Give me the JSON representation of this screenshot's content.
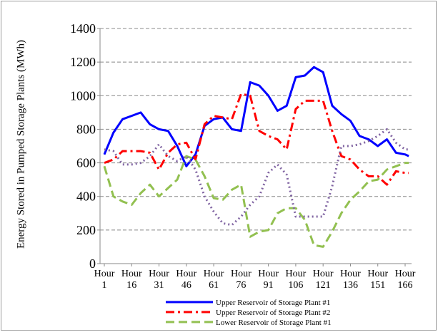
{
  "chart_data": {
    "type": "line",
    "y_label": "Energy Stored in Pumped Storage Plants (MWh)",
    "x": [
      1,
      6,
      11,
      16,
      21,
      26,
      31,
      36,
      41,
      46,
      51,
      56,
      61,
      66,
      71,
      76,
      81,
      86,
      91,
      96,
      101,
      106,
      111,
      116,
      121,
      126,
      131,
      136,
      141,
      146,
      151,
      156,
      161,
      166,
      168
    ],
    "xlim": [
      1,
      166
    ],
    "xticks": [
      {
        "value": 1,
        "label": "Hour 1"
      },
      {
        "value": 16,
        "label": "Hour 16"
      },
      {
        "value": 31,
        "label": "Hour 31"
      },
      {
        "value": 46,
        "label": "Hour 46"
      },
      {
        "value": 61,
        "label": "Hour 61"
      },
      {
        "value": 76,
        "label": "Hour 76"
      },
      {
        "value": 91,
        "label": "Hour 91"
      },
      {
        "value": 106,
        "label": "Hour 106"
      },
      {
        "value": 121,
        "label": "Hour 121"
      },
      {
        "value": 136,
        "label": "Hour 136"
      },
      {
        "value": 151,
        "label": "Hour 151"
      },
      {
        "value": 166,
        "label": "Hour 166"
      }
    ],
    "ylim": [
      0,
      1400
    ],
    "yticks": [
      0,
      200,
      400,
      600,
      800,
      1000,
      1200,
      1400
    ],
    "grid": true,
    "legend": "bottom",
    "series": [
      {
        "name": "Upper Reservoir of Storage Plant #1",
        "color": "#0000ff",
        "dash": "solid",
        "values": [
          650,
          780,
          860,
          880,
          900,
          830,
          800,
          790,
          700,
          580,
          650,
          820,
          860,
          870,
          800,
          790,
          1080,
          1060,
          1000,
          910,
          940,
          1110,
          1120,
          1170,
          1140,
          940,
          890,
          850,
          760,
          740,
          700,
          740,
          660,
          650,
          640
        ]
      },
      {
        "name": "Upper Reservoir of Storage Plant #2",
        "color": "#ff0000",
        "dash": "dashdot",
        "values": [
          600,
          620,
          670,
          670,
          670,
          660,
          560,
          660,
          710,
          720,
          620,
          830,
          880,
          870,
          860,
          1010,
          1000,
          790,
          760,
          740,
          680,
          920,
          970,
          970,
          970,
          790,
          640,
          620,
          560,
          520,
          520,
          470,
          550,
          540,
          540
        ]
      },
      {
        "name": "Lower Reservoir of Storage Plant #1",
        "color": "#92c050",
        "dash": "dashed",
        "values": [
          580,
          400,
          370,
          350,
          420,
          470,
          400,
          450,
          500,
          640,
          620,
          520,
          390,
          380,
          440,
          470,
          160,
          190,
          200,
          300,
          330,
          330,
          260,
          110,
          100,
          190,
          300,
          380,
          430,
          490,
          500,
          560,
          580,
          600,
          600
        ]
      },
      {
        "color": "#8064a2",
        "dash": "dotted",
        "values": [
          680,
          670,
          590,
          590,
          600,
          640,
          710,
          640,
          610,
          640,
          560,
          400,
          310,
          240,
          230,
          280,
          350,
          400,
          540,
          590,
          530,
          280,
          280,
          280,
          280,
          460,
          700,
          700,
          710,
          730,
          760,
          800,
          720,
          680,
          680
        ]
      }
    ]
  }
}
